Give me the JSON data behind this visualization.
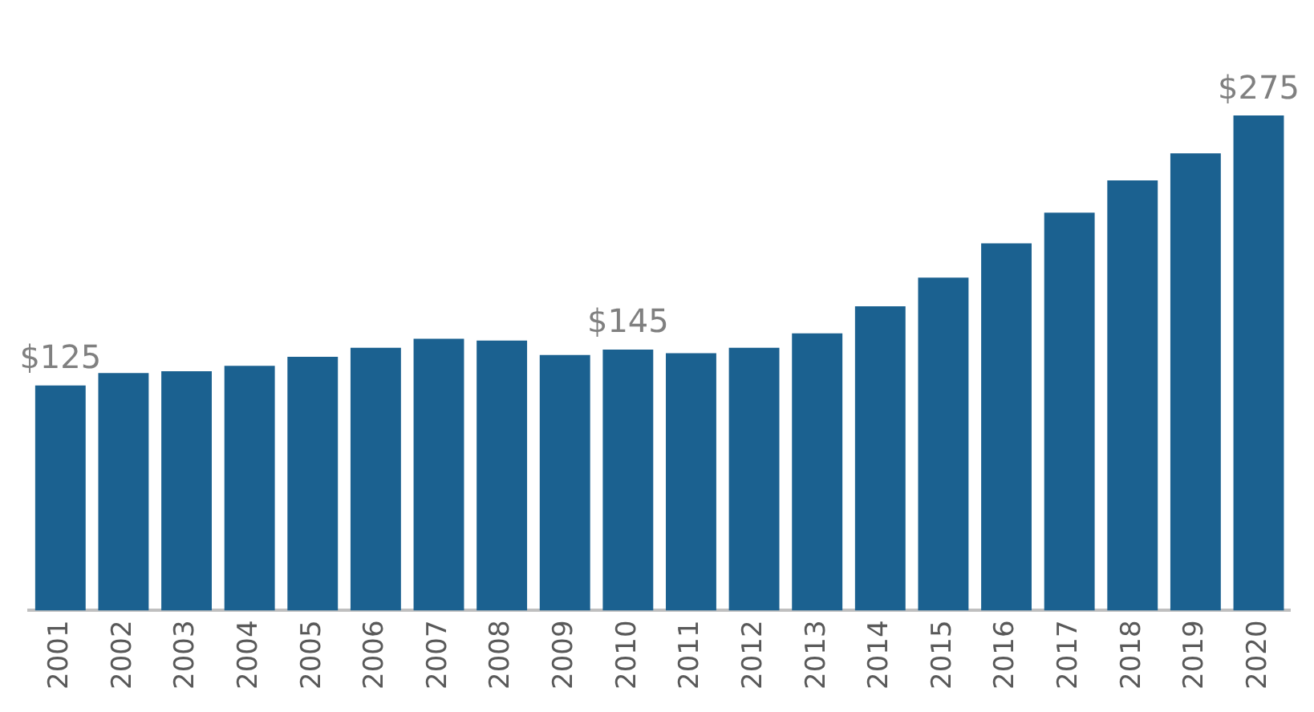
{
  "chart_data": {
    "type": "bar",
    "categories": [
      "2001",
      "2002",
      "2003",
      "2004",
      "2005",
      "2006",
      "2007",
      "2008",
      "2009",
      "2010",
      "2011",
      "2012",
      "2013",
      "2014",
      "2015",
      "2016",
      "2017",
      "2018",
      "2019",
      "2020"
    ],
    "values": [
      125,
      132,
      133,
      136,
      141,
      146,
      151,
      150,
      142,
      145,
      143,
      146,
      154,
      169,
      185,
      204,
      221,
      239,
      254,
      275
    ],
    "color": "#1b6190",
    "value_labels": [
      "$125",
      null,
      null,
      null,
      null,
      null,
      null,
      null,
      null,
      "$145",
      null,
      null,
      null,
      null,
      null,
      null,
      null,
      null,
      null,
      "$275"
    ]
  }
}
